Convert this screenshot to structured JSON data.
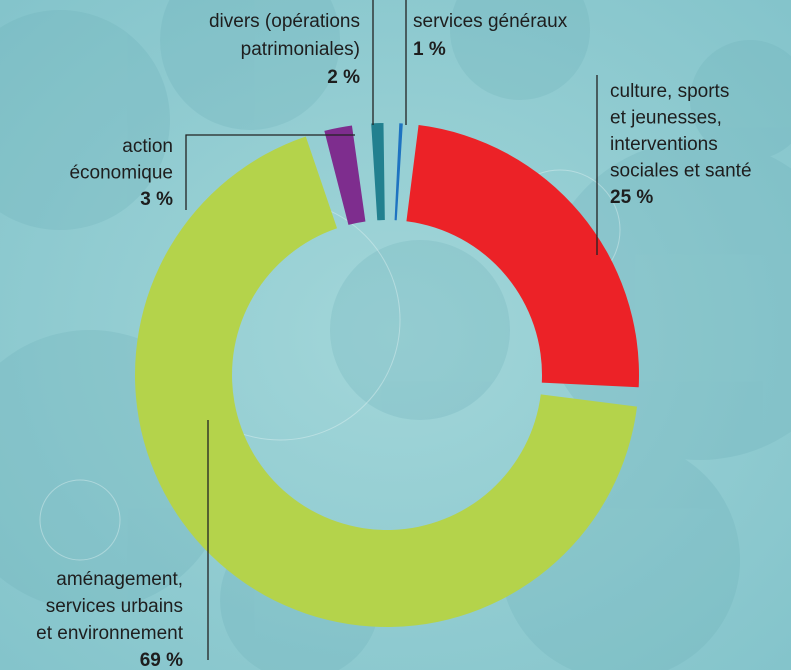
{
  "chart_data": {
    "type": "pie",
    "donut": true,
    "categories": [
      "culture, sports\net jeunesses,\ninterventions\nsociales et santé",
      "aménagement,\nservices urbains\net environnement",
      "action\néconomique",
      "divers (opérations\npatrimoniales)",
      "services généraux"
    ],
    "values": [
      25,
      69,
      3,
      2,
      1
    ],
    "value_labels": [
      "25 %",
      "69 %",
      "3 %",
      "2 %",
      "1 %"
    ],
    "colors": [
      "#ec2227",
      "#b4d34b",
      "#7e2d8e",
      "#22808f",
      "#1e73c1"
    ]
  }
}
